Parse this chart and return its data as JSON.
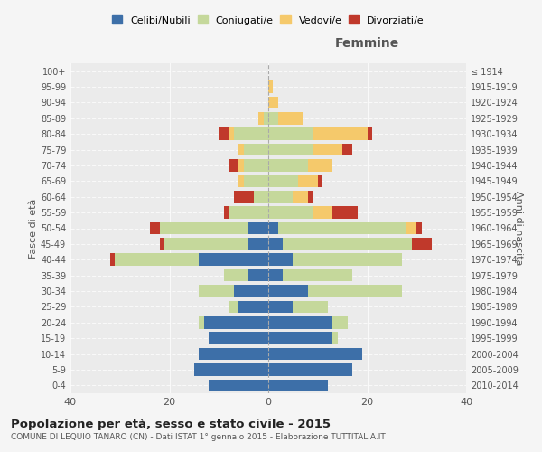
{
  "age_groups": [
    "0-4",
    "5-9",
    "10-14",
    "15-19",
    "20-24",
    "25-29",
    "30-34",
    "35-39",
    "40-44",
    "45-49",
    "50-54",
    "55-59",
    "60-64",
    "65-69",
    "70-74",
    "75-79",
    "80-84",
    "85-89",
    "90-94",
    "95-99",
    "100+"
  ],
  "birth_years": [
    "2010-2014",
    "2005-2009",
    "2000-2004",
    "1995-1999",
    "1990-1994",
    "1985-1989",
    "1980-1984",
    "1975-1979",
    "1970-1974",
    "1965-1969",
    "1960-1964",
    "1955-1959",
    "1950-1954",
    "1945-1949",
    "1940-1944",
    "1935-1939",
    "1930-1934",
    "1925-1929",
    "1920-1924",
    "1915-1919",
    "≤ 1914"
  ],
  "males": {
    "celibi": [
      12,
      15,
      14,
      12,
      13,
      6,
      7,
      4,
      14,
      4,
      4,
      0,
      0,
      0,
      0,
      0,
      0,
      0,
      0,
      0,
      0
    ],
    "coniugati": [
      0,
      0,
      0,
      0,
      1,
      2,
      7,
      5,
      17,
      17,
      18,
      8,
      3,
      5,
      5,
      5,
      7,
      1,
      0,
      0,
      0
    ],
    "vedovi": [
      0,
      0,
      0,
      0,
      0,
      0,
      0,
      0,
      0,
      0,
      0,
      0,
      0,
      1,
      1,
      1,
      1,
      1,
      0,
      0,
      0
    ],
    "divorziati": [
      0,
      0,
      0,
      0,
      0,
      0,
      0,
      0,
      1,
      1,
      2,
      1,
      4,
      0,
      2,
      0,
      2,
      0,
      0,
      0,
      0
    ]
  },
  "females": {
    "nubili": [
      12,
      17,
      19,
      13,
      13,
      5,
      8,
      3,
      5,
      3,
      2,
      0,
      0,
      0,
      0,
      0,
      0,
      0,
      0,
      0,
      0
    ],
    "coniugate": [
      0,
      0,
      0,
      1,
      3,
      7,
      19,
      14,
      22,
      26,
      26,
      9,
      5,
      6,
      8,
      9,
      9,
      2,
      0,
      0,
      0
    ],
    "vedove": [
      0,
      0,
      0,
      0,
      0,
      0,
      0,
      0,
      0,
      0,
      2,
      4,
      3,
      4,
      5,
      6,
      11,
      5,
      2,
      1,
      0
    ],
    "divorziate": [
      0,
      0,
      0,
      0,
      0,
      0,
      0,
      0,
      0,
      4,
      1,
      5,
      1,
      1,
      0,
      2,
      1,
      0,
      0,
      0,
      0
    ]
  },
  "colors": {
    "celibi": "#3d6fa8",
    "coniugati": "#c5d89b",
    "vedovi": "#f5c96b",
    "divorziati": "#c0392b"
  },
  "xlim": 40,
  "title": "Popolazione per età, sesso e stato civile - 2015",
  "subtitle": "COMUNE DI LEQUIO TANARO (CN) - Dati ISTAT 1° gennaio 2015 - Elaborazione TUTTITALIA.IT",
  "xlabel_right": "Femmine",
  "ylabel_left": "Fasce di età",
  "ylabel_right": "Anni di nascita",
  "legend_labels": [
    "Celibi/Nubili",
    "Coniugati/e",
    "Vedovi/e",
    "Divorziati/e"
  ],
  "bg_color": "#f5f5f5",
  "plot_bg": "#ebebeb"
}
